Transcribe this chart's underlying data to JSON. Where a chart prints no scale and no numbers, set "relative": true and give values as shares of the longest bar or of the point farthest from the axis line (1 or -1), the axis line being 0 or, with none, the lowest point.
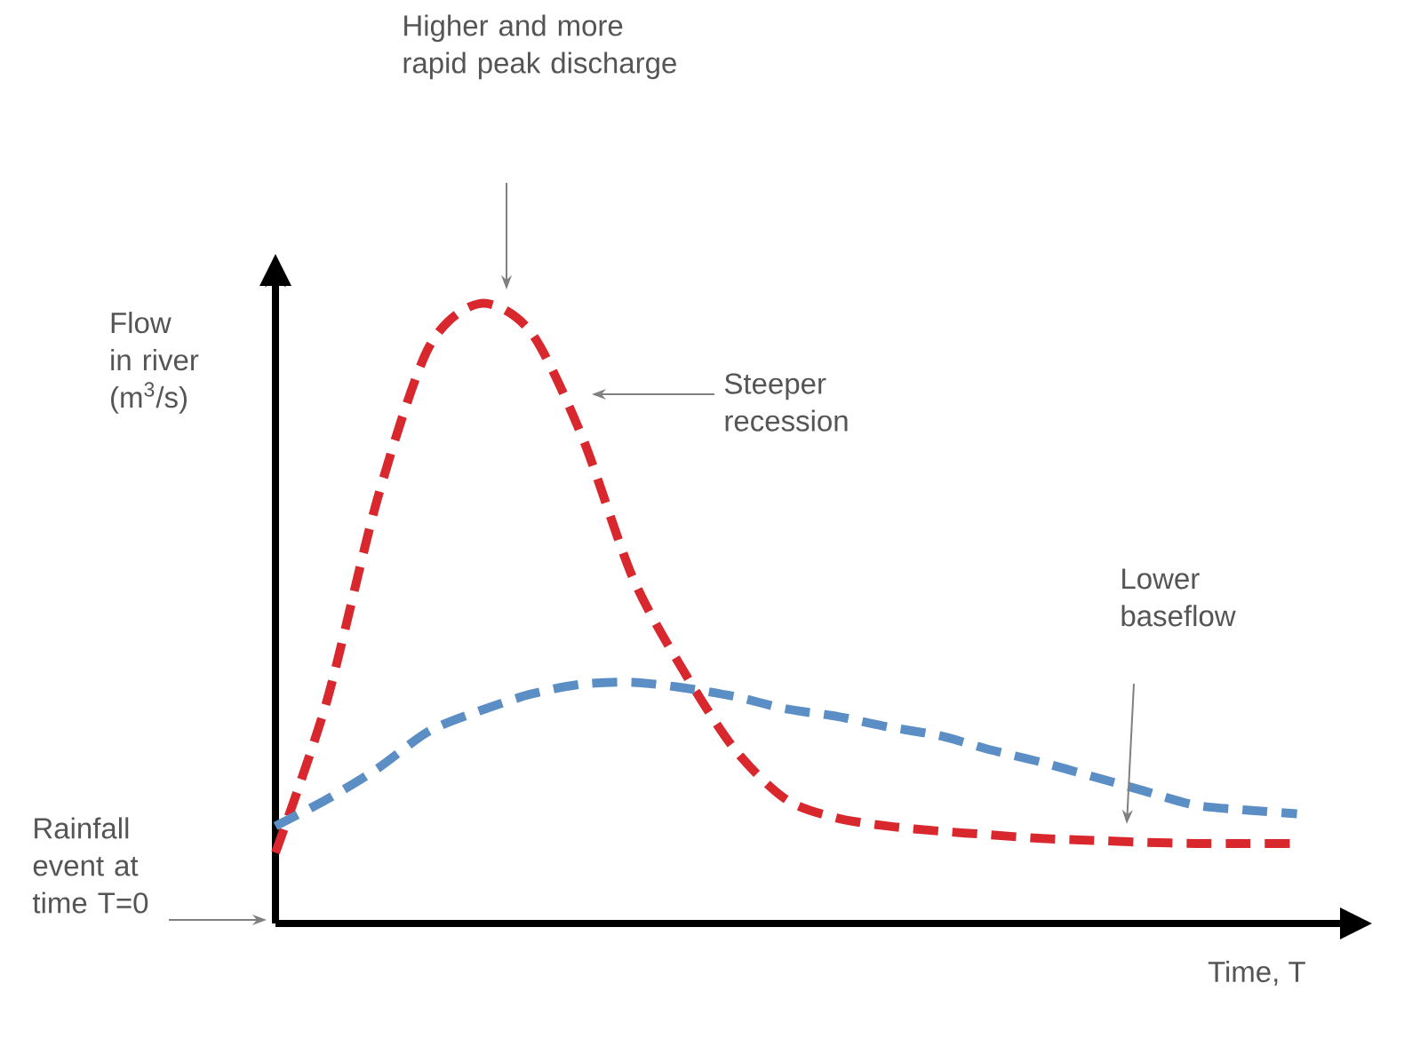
{
  "chart_data": {
    "type": "line",
    "relative": true,
    "line_style": "dashed",
    "ylabel": "Flow in river (m$^{3}$/s)",
    "xlabel": "Time, T",
    "categories": [
      null,
      null,
      null,
      null,
      null,
      null,
      null,
      null,
      null,
      null,
      null,
      null,
      null,
      null,
      null,
      null,
      null,
      null,
      null,
      null,
      null
    ],
    "series": [
      {
        "color": "#d9272e",
        "values": [
          0.114,
          0.357,
          0.686,
          0.929,
          1.0,
          0.954,
          0.786,
          0.557,
          0.406,
          0.28,
          0.2,
          0.17,
          0.157,
          0.149,
          0.143,
          0.137,
          0.134,
          0.131,
          0.129,
          0.129,
          0.129
        ]
      },
      {
        "color": "#5b8ec4",
        "values": [
          0.157,
          0.2,
          0.25,
          0.31,
          0.343,
          0.37,
          0.386,
          0.389,
          0.38,
          0.366,
          0.346,
          0.334,
          0.317,
          0.303,
          0.28,
          0.26,
          0.237,
          0.214,
          0.191,
          0.183,
          0.177
        ]
      }
    ],
    "annotations": [
      "Higher and more rapid peak discharge",
      "Steeper recession",
      "Lower baseflow",
      "Rainfall event at time T=0"
    ]
  }
}
